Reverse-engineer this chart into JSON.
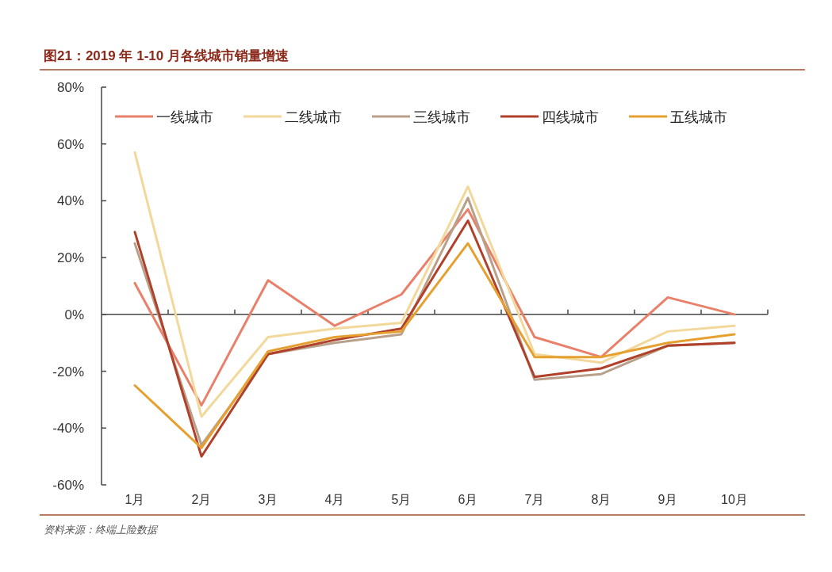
{
  "chart_data": {
    "type": "line",
    "title": "图21：2019 年 1-10 月各线城市销量增速",
    "categories": [
      "1月",
      "2月",
      "3月",
      "4月",
      "5月",
      "6月",
      "7月",
      "8月",
      "9月",
      "10月"
    ],
    "series": [
      {
        "name": "一线城市",
        "color": "#e8806a",
        "values": [
          11,
          -32,
          12,
          -4,
          7,
          37,
          -8,
          -15,
          6,
          0
        ]
      },
      {
        "name": "二线城市",
        "color": "#f2d89a",
        "values": [
          57,
          -36,
          -8,
          -5,
          -3,
          45,
          -14,
          -17,
          -6,
          -4
        ]
      },
      {
        "name": "三线城市",
        "color": "#b8a08a",
        "values": [
          25,
          -46,
          -14,
          -10,
          -7,
          41,
          -23,
          -21,
          -11,
          -10
        ]
      },
      {
        "name": "四线城市",
        "color": "#b0402a",
        "values": [
          29,
          -50,
          -14,
          -9,
          -5,
          33,
          -22,
          -19,
          -11,
          -10
        ]
      },
      {
        "name": "五线城市",
        "color": "#e5a030",
        "values": [
          -25,
          -47,
          -13,
          -8,
          -6,
          25,
          -15,
          -15,
          -10,
          -7
        ]
      }
    ],
    "ylim": [
      -60,
      80
    ],
    "yticks": [
      {
        "value": -60,
        "label": "-60%"
      },
      {
        "value": -40,
        "label": "-40%"
      },
      {
        "value": -20,
        "label": "-20%"
      },
      {
        "value": 0,
        "label": "0%"
      },
      {
        "value": 20,
        "label": "20%"
      },
      {
        "value": 40,
        "label": "40%"
      },
      {
        "value": 60,
        "label": "60%"
      },
      {
        "value": 80,
        "label": "80%"
      }
    ],
    "legend": "top",
    "marker": "none",
    "line_style": "solid",
    "annotations": [
      "资料来源：终端上险数据"
    ]
  }
}
